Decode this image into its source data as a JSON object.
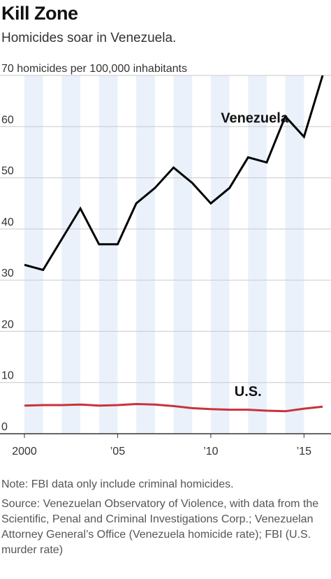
{
  "chart_data": {
    "type": "line",
    "title": "Kill Zone",
    "subtitle": "Homicides soar in Venezuela.",
    "ylabel": "homicides per 100,000 inhabitants",
    "ylim": [
      0,
      70
    ],
    "xlim": [
      2000,
      2016
    ],
    "grid": true,
    "y_ticks": [
      0,
      10,
      20,
      30,
      40,
      50,
      60,
      70
    ],
    "y_tick_labels": [
      "0",
      "10",
      "20",
      "30",
      "40",
      "50",
      "60",
      "70"
    ],
    "x_ticks": [
      2000,
      2005,
      2010,
      2015
    ],
    "x_tick_labels": [
      "2000",
      "’05",
      "’10",
      "’15"
    ],
    "series": [
      {
        "name": "Venezuela",
        "color": "#000000",
        "x": [
          2000,
          2001,
          2002,
          2003,
          2004,
          2005,
          2006,
          2007,
          2008,
          2009,
          2010,
          2011,
          2012,
          2013,
          2014,
          2015,
          2016
        ],
        "values": [
          33,
          32,
          38,
          44,
          37,
          37,
          45,
          48,
          52,
          49,
          45,
          48,
          54,
          53,
          62,
          58,
          70
        ]
      },
      {
        "name": "U.S.",
        "color": "#c8333a",
        "x": [
          2000,
          2001,
          2002,
          2003,
          2004,
          2005,
          2006,
          2007,
          2008,
          2009,
          2010,
          2011,
          2012,
          2013,
          2014,
          2015,
          2016
        ],
        "values": [
          5.5,
          5.6,
          5.6,
          5.7,
          5.5,
          5.6,
          5.8,
          5.7,
          5.4,
          5.0,
          4.8,
          4.7,
          4.7,
          4.5,
          4.4,
          4.9,
          5.3
        ]
      }
    ]
  },
  "notes": {
    "note": "Note: FBI data only include criminal homicides.",
    "source": "Source: Venezuelan Observatory of Violence, with data from the Scientific, Penal and Criminal Investigations Corp.; Venezuelan Attorney General’s Office (Venezuela homicide rate); FBI (U.S. murder rate)"
  },
  "colors": {
    "band": "#eaf1fa",
    "grid": "#c9c9c9",
    "axis": "#333333"
  }
}
